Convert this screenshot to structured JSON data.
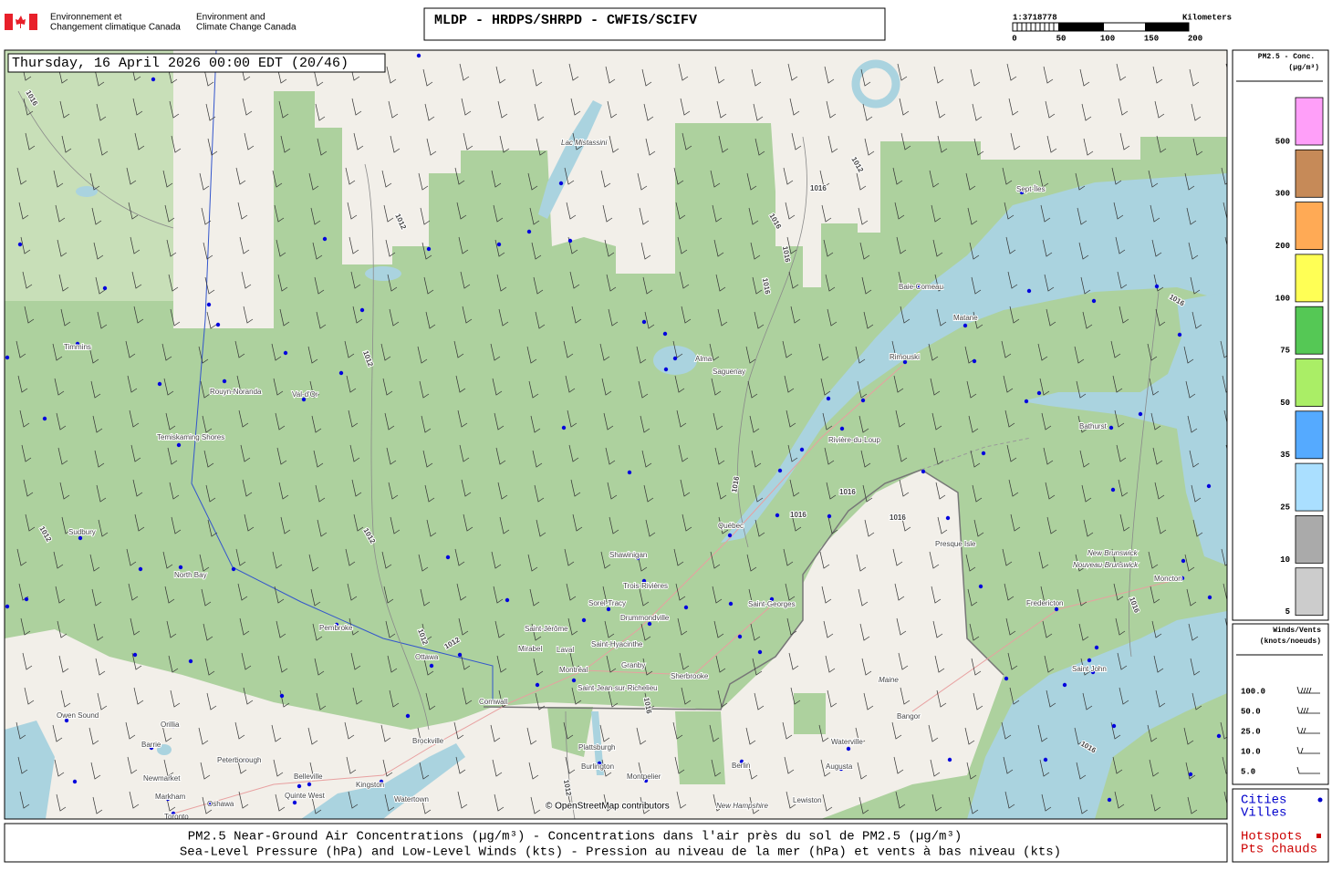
{
  "header": {
    "org_fr": [
      "Environnement et",
      "Changement climatique Canada"
    ],
    "org_en": [
      "Environment and",
      "Climate Change Canada"
    ],
    "title": "MLDP - HRDPS/SHRPD - CWFIS/SCIFV",
    "scale": {
      "ratio": "1:3718778",
      "unit": "Kilometers",
      "ticks": [
        "0",
        "50",
        "100",
        "150",
        "200"
      ]
    }
  },
  "map": {
    "timestamp": "Thursday, 16 April 2026 00:00 EDT (20/46)",
    "attribution": "© OpenStreetMap contributors",
    "isobar_labels": [
      "1012",
      "1016"
    ],
    "regions": [
      "New Brunswick",
      "Nouveau-Brunswick",
      "Maine",
      "New Hampshire",
      "Lac Mistassini"
    ],
    "cities": [
      "Sept-Îles",
      "Baie-Comeau",
      "Matane",
      "Rimouski",
      "Alma",
      "Saguenay",
      "Rivière-du-Loup",
      "Québec",
      "Bathurst",
      "Timmins",
      "Rouyn-Noranda",
      "Val-d'Or",
      "Temiskaming Shores",
      "Sudbury",
      "North Bay",
      "Shawinigan",
      "Trois-Rivières",
      "Sorel-Tracy",
      "Drummondville",
      "Saint-Jérôme",
      "Mirabel",
      "Laval",
      "Montréal",
      "Saint-Hyacinthe",
      "Granby",
      "Sherbrooke",
      "Saint-Jean-sur-Richelieu",
      "Cornwall",
      "Ottawa",
      "Pembroke",
      "Saint-Georges",
      "Presque Isle",
      "Fredericton",
      "Moncton",
      "Saint John",
      "Bangor",
      "Waterville",
      "Augusta",
      "Lewiston",
      "Berlin",
      "Montpelier",
      "Burlington",
      "Plattsburgh",
      "Watertown",
      "Kingston",
      "Brockville",
      "Belleville",
      "Quinte West",
      "Peterborough",
      "Orillia",
      "Barrie",
      "Newmarket",
      "Markham",
      "Toronto",
      "Oshawa",
      "Owen Sound"
    ]
  },
  "legend": {
    "title": [
      "PM2.5 - Conc.",
      "(µg/m³)"
    ],
    "items": [
      {
        "label": "500",
        "color": "#ff9ff9"
      },
      {
        "label": "300",
        "color": "#c68a58"
      },
      {
        "label": "200",
        "color": "#ffaa55"
      },
      {
        "label": "100",
        "color": "#ffff55"
      },
      {
        "label": "75",
        "color": "#55c855"
      },
      {
        "label": "50",
        "color": "#aaee66"
      },
      {
        "label": "35",
        "color": "#55aaff"
      },
      {
        "label": "25",
        "color": "#aadfff"
      },
      {
        "label": "10",
        "color": "#aaaaaa"
      },
      {
        "label": "5",
        "color": "#cccccc"
      }
    ]
  },
  "winds": {
    "title": [
      "Winds/Vents",
      "(knots/noeuds)"
    ],
    "items": [
      "100.0",
      "50.0",
      "25.0",
      "10.0",
      "5.0"
    ]
  },
  "symbols": {
    "cities": [
      "Cities",
      "Villes"
    ],
    "hotspots": [
      "Hotspots",
      "Pts chauds"
    ]
  },
  "caption": [
    "PM2.5 Near-Ground Air Concentrations (µg/m³) - Concentrations dans l'air près du sol de PM2.5 (µg/m³)",
    "Sea-Level Pressure (hPa) and Low-Level Winds (kts) - Pression au niveau de la mer (hPa) et vents à bas niveau (kts)"
  ]
}
